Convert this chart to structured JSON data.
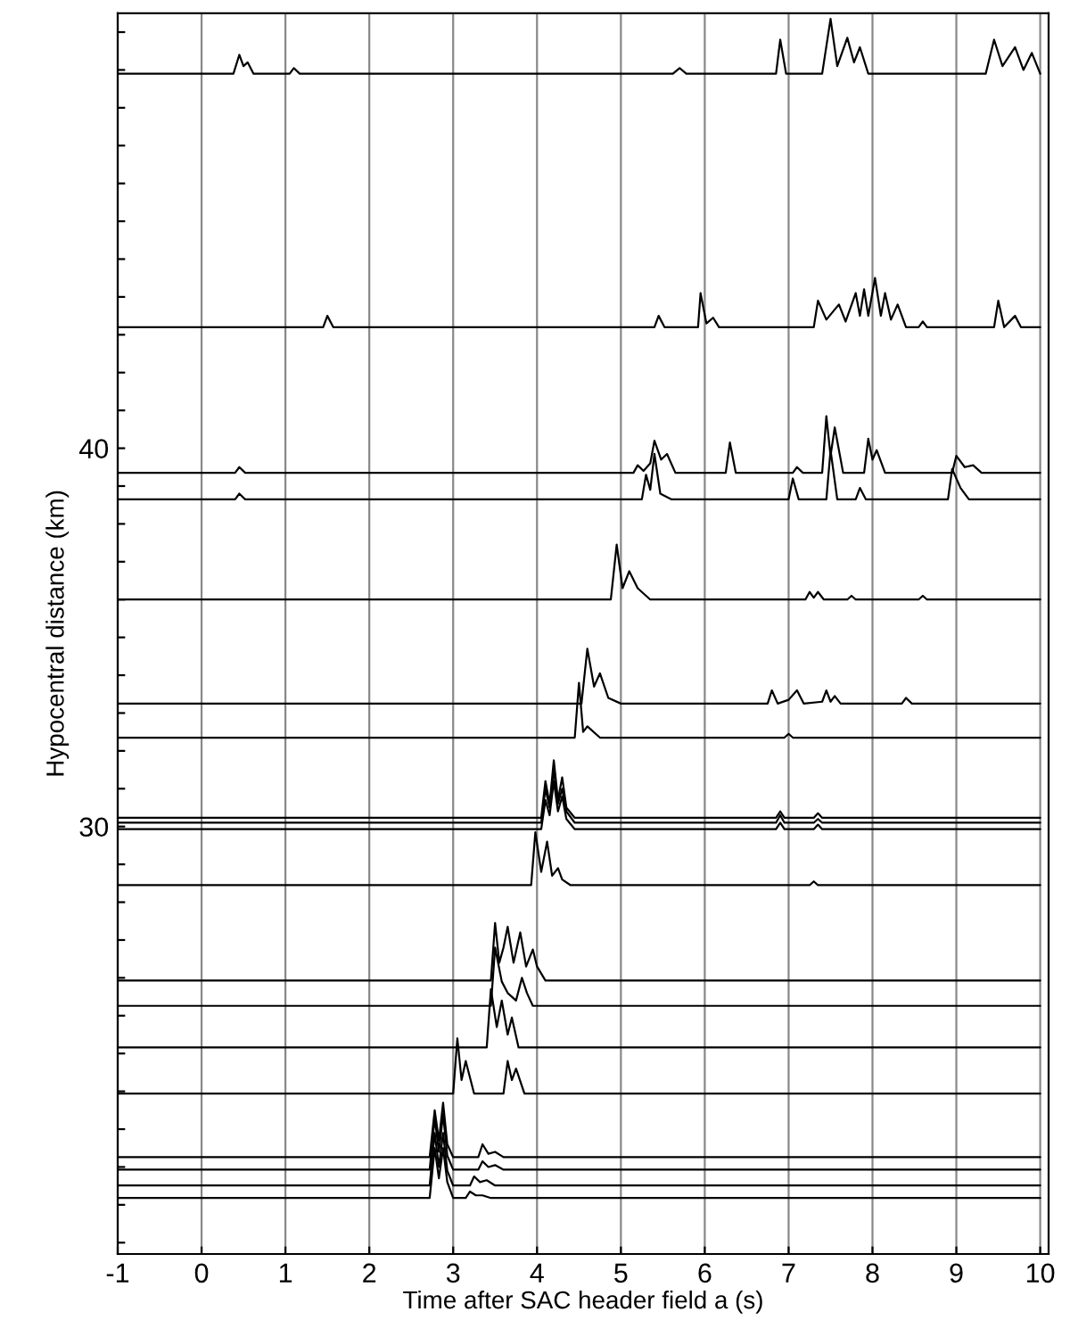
{
  "chart_data": {
    "type": "line",
    "xlabel": "Time after SAC header field a (s)",
    "ylabel": "Hypocentral distance (km)",
    "xlim": [
      -1,
      10.1
    ],
    "ylim": [
      18.7,
      51.5
    ],
    "xticks": [
      -1,
      0,
      1,
      2,
      3,
      4,
      5,
      6,
      7,
      8,
      9,
      10
    ],
    "yticks": [
      {
        "value": 19,
        "label": null
      },
      {
        "value": 20,
        "label": null
      },
      {
        "value": 21,
        "label": null
      },
      {
        "value": 22,
        "label": null
      },
      {
        "value": 23,
        "label": null
      },
      {
        "value": 24,
        "label": null
      },
      {
        "value": 25,
        "label": null
      },
      {
        "value": 26,
        "label": null
      },
      {
        "value": 27,
        "label": null
      },
      {
        "value": 28,
        "label": null
      },
      {
        "value": 29,
        "label": null
      },
      30,
      {
        "value": 31,
        "label": null
      },
      {
        "value": 32,
        "label": null
      },
      {
        "value": 33,
        "label": null
      },
      {
        "value": 34,
        "label": null
      },
      {
        "value": 35,
        "label": null
      },
      {
        "value": 36,
        "label": null
      },
      {
        "value": 37,
        "label": null
      },
      {
        "value": 38,
        "label": null
      },
      {
        "value": 39,
        "label": null
      },
      40,
      {
        "value": 41,
        "label": null
      },
      {
        "value": 42,
        "label": null
      },
      {
        "value": 43,
        "label": null
      },
      {
        "value": 44,
        "label": null
      },
      {
        "value": 45,
        "label": null
      },
      {
        "value": 46,
        "label": null
      },
      {
        "value": 47,
        "label": null
      },
      {
        "value": 48,
        "label": null
      },
      {
        "value": 49,
        "label": null
      },
      {
        "value": 50,
        "label": null
      },
      {
        "value": 51,
        "label": null
      }
    ],
    "grid": "x",
    "series": [
      {
        "color": "#000000",
        "x": [
          -1,
          0.38,
          0.45,
          0.5,
          0.55,
          0.62,
          1.05,
          1.1,
          1.17,
          5.62,
          5.7,
          5.78,
          6.85,
          6.9,
          6.97,
          7.4,
          7.5,
          7.58,
          7.7,
          7.78,
          7.85,
          7.95,
          9.35,
          9.45,
          9.55,
          9.7,
          9.8,
          9.9,
          10
        ],
        "values": [
          49.9,
          49.9,
          50.4,
          50.1,
          50.2,
          49.9,
          49.9,
          50.05,
          49.9,
          49.9,
          50.05,
          49.9,
          49.9,
          50.8,
          49.9,
          49.9,
          51.35,
          50.1,
          50.85,
          50.2,
          50.6,
          49.9,
          49.9,
          50.8,
          50.1,
          50.6,
          50.0,
          50.45,
          49.9
        ]
      },
      {
        "color": "#000000",
        "x": [
          -1,
          0.45,
          1.45,
          1.5,
          1.57,
          5.4,
          5.45,
          5.52,
          5.92,
          5.95,
          6.02,
          6.1,
          6.17,
          7.3,
          7.35,
          7.45,
          7.6,
          7.68,
          7.8,
          7.85,
          7.9,
          7.95,
          8.03,
          8.1,
          8.15,
          8.22,
          8.3,
          8.4,
          8.55,
          8.6,
          8.65,
          9.45,
          9.5,
          9.57,
          9.7,
          9.77,
          10
        ],
        "values": [
          43.2,
          43.2,
          43.2,
          43.5,
          43.2,
          43.2,
          43.5,
          43.2,
          43.2,
          44.1,
          43.3,
          43.45,
          43.2,
          43.2,
          43.9,
          43.4,
          43.8,
          43.35,
          44.1,
          43.5,
          44.2,
          43.5,
          44.5,
          43.5,
          44.1,
          43.4,
          43.8,
          43.2,
          43.2,
          43.35,
          43.2,
          43.2,
          43.9,
          43.2,
          43.5,
          43.2,
          43.2
        ]
      },
      {
        "color": "#000000",
        "x": [
          -1,
          0.4,
          0.45,
          0.52,
          5.15,
          5.2,
          5.27,
          5.35,
          5.4,
          5.48,
          5.55,
          5.65,
          6.25,
          6.3,
          6.37,
          7.05,
          7.1,
          7.17,
          7.4,
          7.45,
          7.5,
          7.55,
          7.65,
          7.9,
          7.95,
          8.0,
          8.05,
          8.15,
          8.95,
          9.0,
          9.1,
          9.2,
          9.3,
          10
        ],
        "values": [
          39.35,
          39.35,
          39.5,
          39.35,
          39.35,
          39.55,
          39.4,
          39.6,
          40.2,
          39.7,
          39.85,
          39.35,
          39.35,
          40.15,
          39.35,
          39.35,
          39.5,
          39.35,
          39.35,
          40.85,
          39.8,
          40.55,
          39.35,
          39.35,
          40.25,
          39.7,
          39.95,
          39.35,
          39.35,
          39.8,
          39.5,
          39.55,
          39.35,
          39.35
        ]
      },
      {
        "color": "#000000",
        "x": [
          -1,
          0.4,
          0.45,
          0.52,
          5.25,
          5.3,
          5.35,
          5.4,
          5.47,
          5.6,
          7.0,
          7.05,
          7.12,
          7.45,
          7.5,
          7.58,
          7.8,
          7.85,
          7.92,
          8.9,
          8.95,
          9.05,
          9.15,
          10
        ],
        "values": [
          38.65,
          38.65,
          38.8,
          38.65,
          38.65,
          39.3,
          38.9,
          39.85,
          38.8,
          38.65,
          38.65,
          39.2,
          38.65,
          38.65,
          39.95,
          38.65,
          38.65,
          38.95,
          38.65,
          38.65,
          39.45,
          38.95,
          38.65,
          38.65
        ]
      },
      {
        "color": "#000000",
        "x": [
          -1,
          4.88,
          4.95,
          5.02,
          5.1,
          5.2,
          5.35,
          7.2,
          7.25,
          7.3,
          7.35,
          7.42,
          7.7,
          7.75,
          7.8,
          8.55,
          8.6,
          8.65,
          10
        ],
        "values": [
          36,
          36,
          37.45,
          36.3,
          36.75,
          36.3,
          36,
          36,
          36.2,
          36.05,
          36.2,
          36,
          36,
          36.1,
          36,
          36,
          36.1,
          36,
          36
        ]
      },
      {
        "color": "#000000",
        "x": [
          -1,
          4.53,
          4.6,
          4.68,
          4.75,
          4.85,
          5.0,
          6.75,
          6.8,
          6.87,
          7.0,
          7.1,
          7.18,
          7.4,
          7.45,
          7.5,
          7.55,
          7.62,
          8.35,
          8.4,
          8.47,
          10
        ],
        "values": [
          33.25,
          33.25,
          34.7,
          33.7,
          34.05,
          33.4,
          33.25,
          33.25,
          33.6,
          33.25,
          33.35,
          33.6,
          33.25,
          33.3,
          33.6,
          33.3,
          33.45,
          33.25,
          33.25,
          33.4,
          33.25,
          33.25
        ]
      },
      {
        "color": "#000000",
        "x": [
          -1,
          4.45,
          4.5,
          4.55,
          4.6,
          4.75,
          6.95,
          7.0,
          7.05,
          10
        ],
        "values": [
          32.35,
          32.35,
          33.8,
          32.5,
          32.65,
          32.35,
          32.35,
          32.45,
          32.35,
          32.35
        ]
      },
      {
        "color": "#000000",
        "x": [
          -1,
          4.05,
          4.1,
          4.15,
          4.2,
          4.25,
          4.3,
          4.35,
          4.45,
          6.85,
          6.9,
          6.95,
          7.3,
          7.35,
          7.4,
          10
        ],
        "values": [
          30.23,
          30.23,
          31.2,
          30.6,
          31.75,
          30.7,
          31.3,
          30.5,
          30.23,
          30.23,
          30.4,
          30.23,
          30.23,
          30.35,
          30.23,
          30.23
        ]
      },
      {
        "color": "#000000",
        "x": [
          -1,
          4.05,
          4.1,
          4.15,
          4.2,
          4.25,
          4.3,
          4.35,
          4.45,
          6.85,
          6.9,
          6.95,
          7.3,
          7.35,
          7.4,
          10
        ],
        "values": [
          30.1,
          30.1,
          31.0,
          30.5,
          31.5,
          30.6,
          31.0,
          30.4,
          30.1,
          30.1,
          30.3,
          30.1,
          30.1,
          30.2,
          30.1,
          30.1
        ]
      },
      {
        "color": "#000000",
        "x": [
          -1,
          4.05,
          4.1,
          4.15,
          4.2,
          4.25,
          4.3,
          4.35,
          4.45,
          6.85,
          6.9,
          6.95,
          7.3,
          7.35,
          7.4,
          10
        ],
        "values": [
          29.93,
          29.93,
          30.7,
          30.3,
          31.2,
          30.4,
          30.8,
          30.2,
          29.93,
          29.93,
          30.1,
          29.93,
          29.93,
          30.05,
          29.93,
          29.93
        ]
      },
      {
        "color": "#000000",
        "x": [
          -1,
          3.93,
          3.98,
          4.05,
          4.12,
          4.18,
          4.25,
          4.3,
          4.4,
          7.25,
          7.3,
          7.35,
          10
        ],
        "values": [
          28.45,
          28.45,
          29.85,
          28.8,
          29.6,
          28.7,
          28.9,
          28.6,
          28.45,
          28.45,
          28.55,
          28.45,
          28.45
        ]
      },
      {
        "color": "#000000",
        "x": [
          -1,
          3.45,
          3.5,
          3.55,
          3.6,
          3.65,
          3.72,
          3.8,
          3.87,
          3.95,
          4.0,
          4.1,
          10
        ],
        "values": [
          25.93,
          25.93,
          27.45,
          26.4,
          26.8,
          27.35,
          26.4,
          27.2,
          26.3,
          26.75,
          26.3,
          25.93,
          25.93
        ]
      },
      {
        "color": "#000000",
        "x": [
          -1,
          3.45,
          3.5,
          3.58,
          3.65,
          3.75,
          3.82,
          3.88,
          3.95,
          10
        ],
        "values": [
          25.26,
          25.26,
          26.8,
          25.9,
          25.6,
          25.4,
          26.0,
          25.6,
          25.26,
          25.26
        ]
      },
      {
        "color": "#000000",
        "x": [
          -1,
          3.4,
          3.45,
          3.52,
          3.58,
          3.65,
          3.7,
          3.78,
          10
        ],
        "values": [
          24.16,
          24.16,
          25.7,
          24.7,
          25.4,
          24.5,
          24.95,
          24.16,
          24.16
        ]
      },
      {
        "color": "#000000",
        "x": [
          -1,
          3.0,
          3.05,
          3.1,
          3.15,
          3.25,
          3.6,
          3.65,
          3.7,
          3.75,
          3.85,
          10
        ],
        "values": [
          22.94,
          22.94,
          24.4,
          23.3,
          23.8,
          22.94,
          22.94,
          23.8,
          23.3,
          23.6,
          22.94,
          22.94
        ]
      },
      {
        "color": "#000000",
        "x": [
          -1,
          2.72,
          2.78,
          2.83,
          2.88,
          2.93,
          3.0,
          3.3,
          3.35,
          3.42,
          3.5,
          3.6,
          10
        ],
        "values": [
          21.26,
          21.26,
          22.5,
          21.7,
          22.7,
          21.6,
          21.26,
          21.26,
          21.6,
          21.35,
          21.4,
          21.26,
          21.26
        ]
      },
      {
        "color": "#000000",
        "x": [
          -1,
          2.72,
          2.78,
          2.83,
          2.88,
          2.93,
          3.0,
          3.3,
          3.35,
          3.42,
          3.5,
          3.6,
          10
        ],
        "values": [
          20.93,
          20.93,
          22.3,
          21.4,
          22.4,
          21.3,
          20.93,
          20.93,
          21.15,
          21.0,
          21.05,
          20.93,
          20.93
        ]
      },
      {
        "color": "#000000",
        "x": [
          -1,
          2.72,
          2.78,
          2.83,
          2.88,
          2.93,
          3.0,
          3.2,
          3.25,
          3.32,
          3.4,
          3.5,
          10
        ],
        "values": [
          20.51,
          20.51,
          21.9,
          21.0,
          21.9,
          20.9,
          20.51,
          20.51,
          20.75,
          20.6,
          20.65,
          20.51,
          20.51
        ]
      },
      {
        "color": "#000000",
        "x": [
          -1,
          2.72,
          2.78,
          2.83,
          2.88,
          2.93,
          3.0,
          3.15,
          3.2,
          3.27,
          3.35,
          3.45,
          10
        ],
        "values": [
          20.18,
          20.18,
          21.5,
          20.7,
          21.5,
          20.6,
          20.18,
          20.18,
          20.35,
          20.25,
          20.25,
          20.18,
          20.18
        ]
      }
    ]
  }
}
